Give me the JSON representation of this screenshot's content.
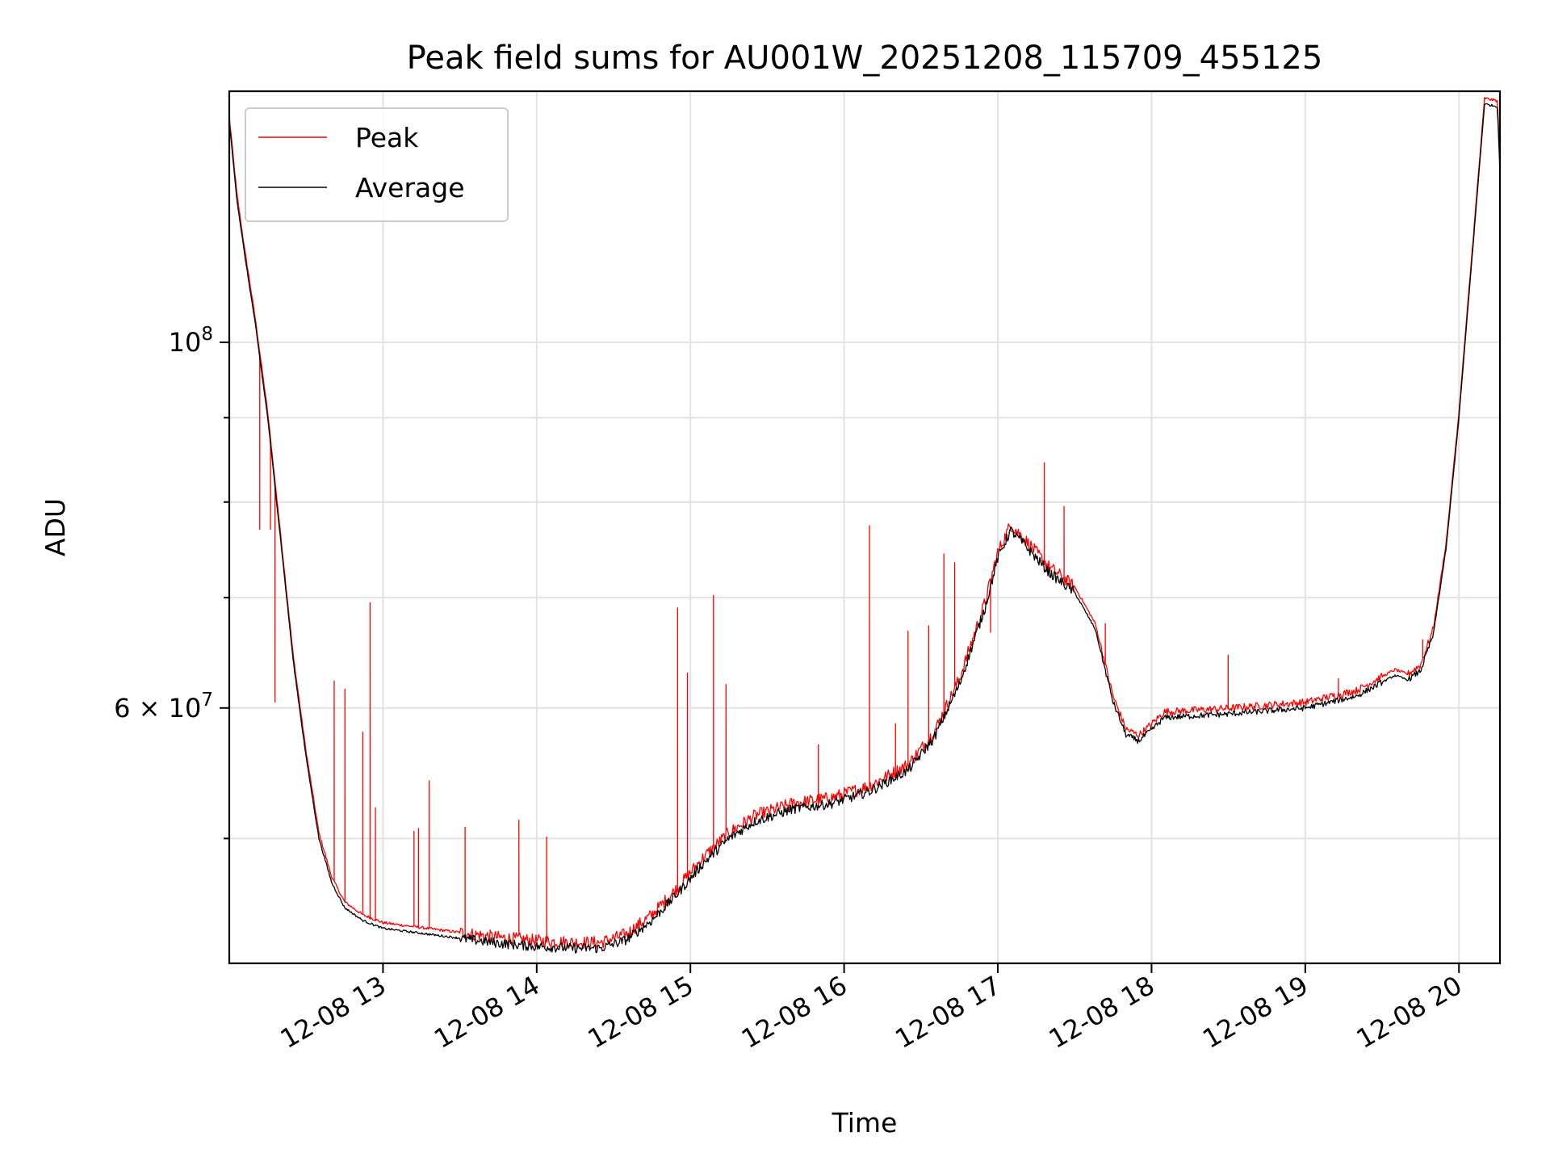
{
  "chart_data": {
    "type": "line",
    "title": "Peak field sums for AU001W_20251208_115709_455125",
    "xlabel": "Time",
    "ylabel": "ADU",
    "yscale": "log",
    "grid": true,
    "legend_position": "top-left",
    "xlim": [
      "2025-12-08 12:00",
      "2025-12-08 20:16"
    ],
    "ylim": [
      42000000,
      142000000
    ],
    "x_ticks": [
      {
        "t": "2025-12-08 13:00",
        "label": "12-08 13"
      },
      {
        "t": "2025-12-08 14:00",
        "label": "12-08 14"
      },
      {
        "t": "2025-12-08 15:00",
        "label": "12-08 15"
      },
      {
        "t": "2025-12-08 16:00",
        "label": "12-08 16"
      },
      {
        "t": "2025-12-08 17:00",
        "label": "12-08 17"
      },
      {
        "t": "2025-12-08 18:00",
        "label": "12-08 18"
      },
      {
        "t": "2025-12-08 19:00",
        "label": "12-08 19"
      },
      {
        "t": "2025-12-08 20:00",
        "label": "12-08 20"
      }
    ],
    "y_ticks_labeled": [
      {
        "value": 60000000,
        "base": "6 × 10",
        "exp": "7"
      },
      {
        "value": 100000000,
        "base": "10",
        "exp": "8"
      }
    ],
    "y_ticks_minor": [
      50000000,
      70000000,
      80000000,
      90000000
    ],
    "series": [
      {
        "name": "Average",
        "color": "#000000",
        "points": [
          [
            "2025-12-08 12:00",
            136000000
          ],
          [
            "2025-12-08 12:03",
            122000000
          ],
          [
            "2025-12-08 12:06",
            113000000
          ],
          [
            "2025-12-08 12:10",
            103000000
          ],
          [
            "2025-12-08 12:15",
            90000000
          ],
          [
            "2025-12-08 12:20",
            76000000
          ],
          [
            "2025-12-08 12:25",
            64000000
          ],
          [
            "2025-12-08 12:30",
            56000000
          ],
          [
            "2025-12-08 12:35",
            50000000
          ],
          [
            "2025-12-08 12:40",
            47000000
          ],
          [
            "2025-12-08 12:45",
            45400000
          ],
          [
            "2025-12-08 12:52",
            44600000
          ],
          [
            "2025-12-08 13:00",
            44100000
          ],
          [
            "2025-12-08 13:15",
            43800000
          ],
          [
            "2025-12-08 13:30",
            43500000
          ],
          [
            "2025-12-08 13:45",
            43200000
          ],
          [
            "2025-12-08 14:00",
            43000000
          ],
          [
            "2025-12-08 14:15",
            42900000
          ],
          [
            "2025-12-08 14:25",
            42900000
          ],
          [
            "2025-12-08 14:35",
            43400000
          ],
          [
            "2025-12-08 14:45",
            44600000
          ],
          [
            "2025-12-08 14:55",
            46300000
          ],
          [
            "2025-12-08 15:05",
            48300000
          ],
          [
            "2025-12-08 15:15",
            50000000
          ],
          [
            "2025-12-08 15:25",
            51200000
          ],
          [
            "2025-12-08 15:40",
            52100000
          ],
          [
            "2025-12-08 15:55",
            52500000
          ],
          [
            "2025-12-08 16:10",
            53400000
          ],
          [
            "2025-12-08 16:25",
            55000000
          ],
          [
            "2025-12-08 16:35",
            57500000
          ],
          [
            "2025-12-08 16:45",
            62000000
          ],
          [
            "2025-12-08 16:55",
            69000000
          ],
          [
            "2025-12-08 17:00",
            74000000
          ],
          [
            "2025-12-08 17:05",
            76900000
          ],
          [
            "2025-12-08 17:10",
            75500000
          ],
          [
            "2025-12-08 17:20",
            72500000
          ],
          [
            "2025-12-08 17:30",
            70500000
          ],
          [
            "2025-12-08 17:38",
            67000000
          ],
          [
            "2025-12-08 17:45",
            60500000
          ],
          [
            "2025-12-08 17:50",
            57800000
          ],
          [
            "2025-12-08 17:55",
            57300000
          ],
          [
            "2025-12-08 18:00",
            58200000
          ],
          [
            "2025-12-08 18:05",
            59200000
          ],
          [
            "2025-12-08 18:30",
            59500000
          ],
          [
            "2025-12-08 19:00",
            60000000
          ],
          [
            "2025-12-08 19:20",
            61000000
          ],
          [
            "2025-12-08 19:35",
            62800000
          ],
          [
            "2025-12-08 19:40",
            62400000
          ],
          [
            "2025-12-08 19:45",
            63200000
          ],
          [
            "2025-12-08 19:50",
            66500000
          ],
          [
            "2025-12-08 19:55",
            75000000
          ],
          [
            "2025-12-08 20:00",
            90000000
          ],
          [
            "2025-12-08 20:05",
            112000000
          ],
          [
            "2025-12-08 20:10",
            139500000
          ],
          [
            "2025-12-08 20:15",
            139000000
          ],
          [
            "2025-12-08 20:16",
            127000000
          ]
        ]
      },
      {
        "name": "Peak",
        "color": "#ff0000",
        "baseline_offset": 1.008,
        "spikes": [
          [
            "2025-12-08 12:12",
            77000000
          ],
          [
            "2025-12-08 12:16",
            77000000
          ],
          [
            "2025-12-08 12:18",
            60500000
          ],
          [
            "2025-12-08 12:41",
            62300000
          ],
          [
            "2025-12-08 12:45",
            61600000
          ],
          [
            "2025-12-08 12:52",
            58000000
          ],
          [
            "2025-12-08 12:55",
            69500000
          ],
          [
            "2025-12-08 12:57",
            52200000
          ],
          [
            "2025-12-08 13:12",
            50500000
          ],
          [
            "2025-12-08 13:14",
            50700000
          ],
          [
            "2025-12-08 13:18",
            54200000
          ],
          [
            "2025-12-08 13:32",
            50800000
          ],
          [
            "2025-12-08 13:53",
            51300000
          ],
          [
            "2025-12-08 14:04",
            50100000
          ],
          [
            "2025-12-08 14:55",
            69000000
          ],
          [
            "2025-12-08 14:59",
            63000000
          ],
          [
            "2025-12-08 15:09",
            70200000
          ],
          [
            "2025-12-08 15:14",
            62000000
          ],
          [
            "2025-12-08 15:50",
            57000000
          ],
          [
            "2025-12-08 16:10",
            77400000
          ],
          [
            "2025-12-08 16:20",
            58700000
          ],
          [
            "2025-12-08 16:25",
            66800000
          ],
          [
            "2025-12-08 16:33",
            67300000
          ],
          [
            "2025-12-08 16:39",
            74400000
          ],
          [
            "2025-12-08 16:43",
            73500000
          ],
          [
            "2025-12-08 16:51",
            66300000
          ],
          [
            "2025-12-08 16:57",
            66700000
          ],
          [
            "2025-12-08 17:07",
            77000000
          ],
          [
            "2025-12-08 17:18",
            84500000
          ],
          [
            "2025-12-08 17:26",
            79500000
          ],
          [
            "2025-12-08 17:42",
            67500000
          ],
          [
            "2025-12-08 18:30",
            64600000
          ],
          [
            "2025-12-08 19:13",
            62500000
          ],
          [
            "2025-12-08 19:46",
            66000000
          ]
        ]
      }
    ]
  },
  "legend": {
    "items": [
      {
        "label": "Peak",
        "color": "#ff0000"
      },
      {
        "label": "Average",
        "color": "#000000"
      }
    ]
  }
}
